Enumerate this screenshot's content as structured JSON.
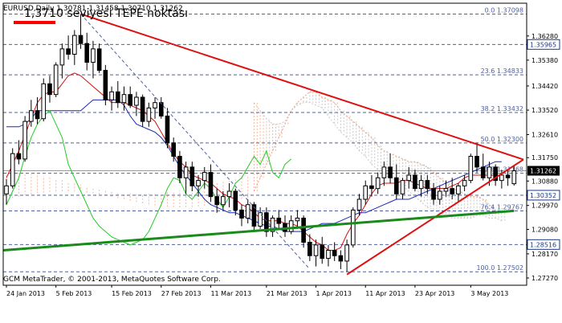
{
  "chart_data": {
    "type": "candlestick",
    "symbol_line": "EURUSD,Daily  1.30781 1.31458 1.30710 1.31262",
    "annotation": "1,3710 seviyesi TEPE noktası",
    "footer": "GCM MetaTrader, © 2001-2013, MetaQuotes Software Corp.",
    "ylim": [
      1.27,
      1.375
    ],
    "y_ticks": [
      "1.36280",
      "1.35380",
      "1.34420",
      "1.33520",
      "1.32610",
      "1.31750",
      "1.30880",
      "1.29970",
      "1.29080",
      "1.28170",
      "1.27270"
    ],
    "x_ticks": [
      "24 Jan 2013",
      "5 Feb 2013",
      "15 Feb 2013",
      "27 Feb 2013",
      "11 Mar 2013",
      "21 Mar 2013",
      "1 Apr 2013",
      "11 Apr 2013",
      "23 Apr 2013",
      "3 May 2013"
    ],
    "fib_levels": [
      {
        "label": "0.0 1.37098",
        "value": 1.37098
      },
      {
        "label": "23.6 1.34833",
        "value": 1.34833
      },
      {
        "label": "38.2 1.33432",
        "value": 1.33432
      },
      {
        "label": "50.0 1.32300",
        "value": 1.323
      },
      {
        "label": "61.8 1.31168",
        "value": 1.31168
      },
      {
        "label": "76.4 1.29767",
        "value": 1.29767
      },
      {
        "label": "100.0 1.27502",
        "value": 1.27502
      }
    ],
    "price_marks": [
      {
        "label": "1.35965",
        "value": 1.35965,
        "style": "box"
      },
      {
        "label": "1.31262",
        "value": 1.31262,
        "style": "current"
      },
      {
        "label": "1.30352",
        "value": 1.30352,
        "style": "box"
      },
      {
        "label": "1.28516",
        "value": 1.28516,
        "style": "box"
      }
    ],
    "candles": [
      [
        1.304,
        1.3095,
        1.3,
        1.307
      ],
      [
        1.307,
        1.321,
        1.306,
        1.319
      ],
      [
        1.319,
        1.324,
        1.315,
        1.317
      ],
      [
        1.317,
        1.333,
        1.316,
        1.331
      ],
      [
        1.331,
        1.339,
        1.329,
        1.335
      ],
      [
        1.335,
        1.34,
        1.33,
        1.332
      ],
      [
        1.332,
        1.347,
        1.331,
        1.345
      ],
      [
        1.345,
        1.348,
        1.338,
        1.341
      ],
      [
        1.341,
        1.353,
        1.34,
        1.352
      ],
      [
        1.352,
        1.36,
        1.347,
        1.358
      ],
      [
        1.358,
        1.363,
        1.354,
        1.356
      ],
      [
        1.356,
        1.365,
        1.352,
        1.363
      ],
      [
        1.363,
        1.371,
        1.358,
        1.36
      ],
      [
        1.36,
        1.364,
        1.35,
        1.353
      ],
      [
        1.353,
        1.361,
        1.347,
        1.358
      ],
      [
        1.358,
        1.36,
        1.349,
        1.35
      ],
      [
        1.35,
        1.352,
        1.337,
        1.339
      ],
      [
        1.339,
        1.344,
        1.335,
        1.342
      ],
      [
        1.342,
        1.346,
        1.336,
        1.338
      ],
      [
        1.338,
        1.344,
        1.335,
        1.341
      ],
      [
        1.341,
        1.344,
        1.336,
        1.337
      ],
      [
        1.337,
        1.342,
        1.333,
        1.34
      ],
      [
        1.34,
        1.341,
        1.329,
        1.331
      ],
      [
        1.331,
        1.338,
        1.329,
        1.336
      ],
      [
        1.336,
        1.34,
        1.332,
        1.338
      ],
      [
        1.338,
        1.34,
        1.332,
        1.333
      ],
      [
        1.333,
        1.336,
        1.321,
        1.323
      ],
      [
        1.323,
        1.325,
        1.316,
        1.318
      ],
      [
        1.318,
        1.32,
        1.308,
        1.31
      ],
      [
        1.31,
        1.316,
        1.304,
        1.314
      ],
      [
        1.314,
        1.316,
        1.305,
        1.307
      ],
      [
        1.307,
        1.311,
        1.303,
        1.309
      ],
      [
        1.309,
        1.314,
        1.306,
        1.312
      ],
      [
        1.312,
        1.315,
        1.301,
        1.303
      ],
      [
        1.303,
        1.306,
        1.297,
        1.3
      ],
      [
        1.3,
        1.305,
        1.298,
        1.303
      ],
      [
        1.303,
        1.308,
        1.299,
        1.305
      ],
      [
        1.305,
        1.306,
        1.296,
        1.298
      ],
      [
        1.298,
        1.3,
        1.292,
        1.295
      ],
      [
        1.295,
        1.302,
        1.293,
        1.3
      ],
      [
        1.3,
        1.301,
        1.29,
        1.292
      ],
      [
        1.292,
        1.299,
        1.291,
        1.297
      ],
      [
        1.297,
        1.299,
        1.288,
        1.29
      ],
      [
        1.29,
        1.296,
        1.288,
        1.295
      ],
      [
        1.295,
        1.298,
        1.291,
        1.293
      ],
      [
        1.293,
        1.296,
        1.288,
        1.29
      ],
      [
        1.29,
        1.296,
        1.289,
        1.294
      ],
      [
        1.294,
        1.298,
        1.291,
        1.295
      ],
      [
        1.295,
        1.296,
        1.284,
        1.286
      ],
      [
        1.286,
        1.289,
        1.279,
        1.281
      ],
      [
        1.281,
        1.287,
        1.277,
        1.285
      ],
      [
        1.285,
        1.288,
        1.278,
        1.28
      ],
      [
        1.28,
        1.285,
        1.277,
        1.283
      ],
      [
        1.283,
        1.286,
        1.279,
        1.281
      ],
      [
        1.281,
        1.283,
        1.276,
        1.279
      ],
      [
        1.279,
        1.287,
        1.275,
        1.285
      ],
      [
        1.285,
        1.299,
        1.284,
        1.298
      ],
      [
        1.298,
        1.304,
        1.296,
        1.302
      ],
      [
        1.302,
        1.309,
        1.3,
        1.307
      ],
      [
        1.307,
        1.311,
        1.303,
        1.306
      ],
      [
        1.306,
        1.312,
        1.304,
        1.31
      ],
      [
        1.31,
        1.316,
        1.307,
        1.314
      ],
      [
        1.314,
        1.319,
        1.308,
        1.31
      ],
      [
        1.31,
        1.315,
        1.302,
        1.304
      ],
      [
        1.304,
        1.31,
        1.302,
        1.309
      ],
      [
        1.309,
        1.314,
        1.306,
        1.311
      ],
      [
        1.311,
        1.313,
        1.305,
        1.306
      ],
      [
        1.306,
        1.311,
        1.303,
        1.309
      ],
      [
        1.309,
        1.311,
        1.304,
        1.306
      ],
      [
        1.306,
        1.308,
        1.3,
        1.302
      ],
      [
        1.302,
        1.307,
        1.3,
        1.305
      ],
      [
        1.305,
        1.309,
        1.303,
        1.306
      ],
      [
        1.306,
        1.31,
        1.302,
        1.304
      ],
      [
        1.304,
        1.308,
        1.301,
        1.307
      ],
      [
        1.307,
        1.311,
        1.305,
        1.309
      ],
      [
        1.309,
        1.319,
        1.308,
        1.318
      ],
      [
        1.318,
        1.323,
        1.312,
        1.314
      ],
      [
        1.314,
        1.319,
        1.309,
        1.31
      ],
      [
        1.31,
        1.316,
        1.307,
        1.314
      ],
      [
        1.314,
        1.315,
        1.307,
        1.309
      ],
      [
        1.309,
        1.313,
        1.306,
        1.311
      ],
      [
        1.311,
        1.313,
        1.307,
        1.31
      ],
      [
        1.3078,
        1.3146,
        1.3071,
        1.3126
      ]
    ],
    "tenkan": [
      1.31,
      1.315,
      1.32,
      1.326,
      1.332,
      1.338,
      1.341,
      1.342,
      1.342,
      1.345,
      1.348,
      1.349,
      1.348,
      1.346,
      1.344,
      1.342,
      1.34,
      1.338,
      1.338,
      1.338,
      1.337,
      1.336,
      1.335,
      1.333,
      1.331,
      1.327,
      1.323,
      1.319,
      1.316,
      1.314,
      1.311,
      1.31,
      1.309,
      1.308,
      1.306,
      1.304,
      1.303,
      1.302,
      1.3,
      1.299,
      1.297,
      1.295,
      1.294,
      1.294,
      1.294,
      1.293,
      1.293,
      1.292,
      1.29,
      1.288,
      1.286,
      1.285,
      1.283,
      1.283,
      1.284,
      1.289,
      1.293,
      1.296,
      1.3,
      1.304,
      1.307,
      1.308,
      1.308,
      1.308,
      1.309,
      1.309,
      1.308,
      1.307,
      1.306,
      1.306,
      1.306,
      1.306,
      1.307,
      1.308,
      1.31,
      1.311,
      1.311,
      1.311,
      1.311,
      1.311,
      1.311
    ],
    "kijun": [
      1.329,
      1.329,
      1.329,
      1.33,
      1.332,
      1.335,
      1.335,
      1.335,
      1.335,
      1.335,
      1.335,
      1.335,
      1.335,
      1.337,
      1.339,
      1.339,
      1.339,
      1.339,
      1.339,
      1.337,
      1.333,
      1.33,
      1.329,
      1.328,
      1.327,
      1.325,
      1.322,
      1.318,
      1.314,
      1.311,
      1.308,
      1.305,
      1.302,
      1.3,
      1.299,
      1.298,
      1.297,
      1.297,
      1.296,
      1.295,
      1.294,
      1.293,
      1.292,
      1.292,
      1.291,
      1.29,
      1.29,
      1.29,
      1.29,
      1.291,
      1.292,
      1.293,
      1.293,
      1.293,
      1.294,
      1.295,
      1.296,
      1.297,
      1.297,
      1.298,
      1.299,
      1.3,
      1.301,
      1.302,
      1.302,
      1.302,
      1.303,
      1.304,
      1.305,
      1.306,
      1.307,
      1.308,
      1.309,
      1.31,
      1.311,
      1.312,
      1.313,
      1.314,
      1.315,
      1.316,
      1.316
    ],
    "chikou": [
      1.3,
      1.305,
      1.31,
      1.318,
      1.325,
      1.33,
      1.333,
      1.335,
      1.33,
      1.325,
      1.315,
      1.31,
      1.305,
      1.3,
      1.295,
      1.292,
      1.29,
      1.288,
      1.287,
      1.286,
      1.285,
      1.286,
      1.287,
      1.29,
      1.295,
      1.3,
      1.306,
      1.31,
      1.309,
      1.304,
      1.302,
      1.305,
      1.308,
      1.306,
      1.302,
      1.299,
      1.303,
      1.308,
      1.31,
      1.314,
      1.318,
      1.315,
      1.32,
      1.312,
      1.31,
      1.315,
      1.317
    ],
    "cloud_a": [
      1.305,
      1.31,
      1.315,
      1.32,
      1.325,
      1.33,
      1.335,
      1.338,
      1.34,
      1.342,
      1.342,
      1.34,
      1.339,
      1.338,
      1.335,
      1.333,
      1.331,
      1.329,
      1.327,
      1.325,
      1.322,
      1.32,
      1.319,
      1.318,
      1.317,
      1.316,
      1.316,
      1.315,
      1.314,
      1.312,
      1.31,
      1.308,
      1.306,
      1.305,
      1.304,
      1.303,
      1.303,
      1.302,
      1.3,
      1.298,
      1.297
    ],
    "cloud_b": [
      1.338,
      1.335,
      1.332,
      1.33,
      1.33,
      1.331,
      1.335,
      1.337,
      1.338,
      1.338,
      1.337,
      1.336,
      1.333,
      1.33,
      1.327,
      1.325,
      1.323,
      1.32,
      1.318,
      1.315,
      1.313,
      1.311,
      1.31,
      1.309,
      1.307,
      1.305,
      1.303,
      1.301,
      1.299,
      1.298,
      1.297,
      1.296,
      1.295,
      1.295,
      1.295,
      1.295,
      1.296,
      1.296,
      1.295,
      1.295,
      1.294
    ]
  }
}
